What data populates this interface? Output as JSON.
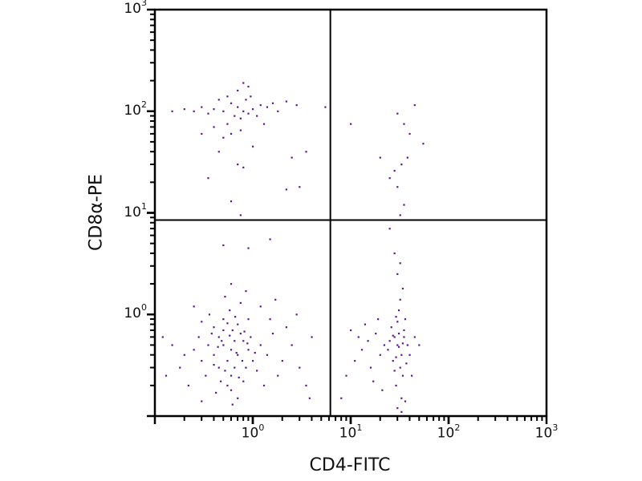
{
  "chart_data": {
    "type": "scatter",
    "xlabel": "CD4-FITC",
    "ylabel": "CD8α-PE",
    "xscale": "log",
    "yscale": "log",
    "xlim": [
      0.1,
      1000
    ],
    "ylim": [
      0.1,
      1000
    ],
    "grid": false,
    "point_color": "#5b1a8b",
    "quadrant_gates": {
      "x": 6.2,
      "y": 8.5
    },
    "x_ticks": [
      {
        "base": "10",
        "exp": "0",
        "value": 1
      },
      {
        "base": "10",
        "exp": "1",
        "value": 10
      },
      {
        "base": "10",
        "exp": "2",
        "value": 100
      },
      {
        "base": "10",
        "exp": "3",
        "value": 1000
      }
    ],
    "y_ticks": [
      {
        "base": "10",
        "exp": "0",
        "value": 1
      },
      {
        "base": "10",
        "exp": "1",
        "value": 10
      },
      {
        "base": "10",
        "exp": "2",
        "value": 100
      },
      {
        "base": "10",
        "exp": "3",
        "value": 1000
      }
    ],
    "points": [
      [
        0.6,
        0.45
      ],
      [
        0.5,
        0.5
      ],
      [
        0.7,
        0.4
      ],
      [
        0.55,
        0.35
      ],
      [
        0.8,
        0.55
      ],
      [
        0.45,
        0.6
      ],
      [
        0.65,
        0.3
      ],
      [
        0.9,
        0.45
      ],
      [
        0.4,
        0.4
      ],
      [
        0.75,
        0.65
      ],
      [
        0.6,
        0.25
      ],
      [
        0.5,
        0.7
      ],
      [
        1.0,
        0.35
      ],
      [
        0.35,
        0.5
      ],
      [
        0.85,
        0.3
      ],
      [
        0.7,
        0.8
      ],
      [
        0.55,
        0.2
      ],
      [
        1.2,
        0.5
      ],
      [
        0.3,
        0.35
      ],
      [
        0.65,
        0.55
      ],
      [
        0.45,
        0.3
      ],
      [
        0.95,
        0.6
      ],
      [
        0.6,
        0.18
      ],
      [
        0.4,
        0.75
      ],
      [
        1.4,
        0.4
      ],
      [
        0.25,
        0.45
      ],
      [
        0.8,
        0.22
      ],
      [
        0.5,
        0.9
      ],
      [
        1.1,
        0.28
      ],
      [
        0.7,
        0.15
      ],
      [
        0.33,
        0.25
      ],
      [
        1.6,
        0.65
      ],
      [
        0.58,
        1.1
      ],
      [
        0.28,
        0.6
      ],
      [
        2.0,
        0.35
      ],
      [
        0.9,
        0.9
      ],
      [
        0.42,
        0.17
      ],
      [
        1.3,
        0.2
      ],
      [
        0.2,
        0.4
      ],
      [
        2.5,
        0.5
      ],
      [
        0.62,
        0.13
      ],
      [
        0.75,
        1.3
      ],
      [
        0.18,
        0.3
      ],
      [
        1.8,
        0.25
      ],
      [
        3.0,
        0.3
      ],
      [
        0.36,
        1.0
      ],
      [
        1.5,
        0.9
      ],
      [
        0.22,
        0.2
      ],
      [
        2.2,
        0.75
      ],
      [
        0.52,
        1.5
      ],
      [
        0.15,
        0.5
      ],
      [
        3.5,
        0.2
      ],
      [
        0.85,
        1.7
      ],
      [
        0.3,
        0.14
      ],
      [
        2.8,
        1.0
      ],
      [
        1.2,
        1.2
      ],
      [
        0.48,
        0.55
      ],
      [
        0.68,
        0.42
      ],
      [
        0.58,
        0.62
      ],
      [
        0.78,
        0.35
      ],
      [
        0.44,
        0.48
      ],
      [
        0.62,
        0.7
      ],
      [
        0.52,
        0.28
      ],
      [
        0.88,
        0.52
      ],
      [
        0.38,
        0.65
      ],
      [
        0.72,
        0.24
      ],
      [
        0.55,
        0.82
      ],
      [
        1.05,
        0.42
      ],
      [
        0.47,
        0.22
      ],
      [
        0.66,
        0.95
      ],
      [
        0.82,
        0.68
      ],
      [
        0.4,
        0.32
      ],
      [
        0.3,
        0.85
      ],
      [
        1.7,
        1.4
      ],
      [
        4.0,
        0.6
      ],
      [
        0.25,
        1.2
      ],
      [
        0.6,
        2.0
      ],
      [
        0.9,
        4.5
      ],
      [
        1.5,
        5.5
      ],
      [
        0.5,
        4.8
      ],
      [
        3.8,
        0.15
      ],
      [
        0.12,
        0.6
      ],
      [
        0.13,
        0.25
      ],
      [
        30,
        0.5
      ],
      [
        28,
        0.6
      ],
      [
        33,
        0.4
      ],
      [
        35,
        0.7
      ],
      [
        25,
        0.55
      ],
      [
        32,
        0.3
      ],
      [
        30,
        0.85
      ],
      [
        38,
        0.5
      ],
      [
        27,
        0.35
      ],
      [
        34,
        0.25
      ],
      [
        31,
        1.1
      ],
      [
        29,
        0.2
      ],
      [
        36,
        0.9
      ],
      [
        26,
        0.75
      ],
      [
        33,
        0.15
      ],
      [
        40,
        0.4
      ],
      [
        24,
        0.45
      ],
      [
        32,
        1.4
      ],
      [
        30,
        0.12
      ],
      [
        35,
        0.6
      ],
      [
        28,
        0.28
      ],
      [
        37,
        0.33
      ],
      [
        31,
        0.65
      ],
      [
        29,
        0.95
      ],
      [
        34,
        1.8
      ],
      [
        22,
        0.5
      ],
      [
        45,
        0.6
      ],
      [
        20,
        0.4
      ],
      [
        18,
        0.65
      ],
      [
        16,
        0.3
      ],
      [
        15,
        0.55
      ],
      [
        14,
        0.8
      ],
      [
        19,
        0.9
      ],
      [
        13,
        0.45
      ],
      [
        17,
        0.22
      ],
      [
        12,
        0.6
      ],
      [
        11,
        0.35
      ],
      [
        10,
        0.7
      ],
      [
        21,
        0.18
      ],
      [
        50,
        0.5
      ],
      [
        42,
        0.25
      ],
      [
        33,
        0.11
      ],
      [
        36,
        0.14
      ],
      [
        30,
        2.5
      ],
      [
        32,
        3.2
      ],
      [
        28,
        4.0
      ],
      [
        25,
        7.0
      ],
      [
        8,
        0.15
      ],
      [
        9,
        0.25
      ],
      [
        31,
        0.48
      ],
      [
        27,
        0.62
      ],
      [
        34,
        0.52
      ],
      [
        29,
        0.38
      ],
      [
        0.8,
        100
      ],
      [
        0.7,
        110
      ],
      [
        0.9,
        95
      ],
      [
        0.6,
        120
      ],
      [
        1.0,
        105
      ],
      [
        0.75,
        85
      ],
      [
        0.85,
        130
      ],
      [
        0.65,
        90
      ],
      [
        1.2,
        115
      ],
      [
        0.5,
        100
      ],
      [
        0.95,
        140
      ],
      [
        0.55,
        75
      ],
      [
        1.4,
        110
      ],
      [
        0.45,
        130
      ],
      [
        0.7,
        160
      ],
      [
        1.1,
        90
      ],
      [
        0.4,
        105
      ],
      [
        1.6,
        120
      ],
      [
        0.6,
        60
      ],
      [
        0.8,
        190
      ],
      [
        0.35,
        95
      ],
      [
        1.8,
        100
      ],
      [
        0.5,
        55
      ],
      [
        0.9,
        175
      ],
      [
        0.3,
        110
      ],
      [
        2.2,
        125
      ],
      [
        0.4,
        70
      ],
      [
        1.3,
        75
      ],
      [
        0.25,
        100
      ],
      [
        2.8,
        115
      ],
      [
        0.55,
        140
      ],
      [
        0.75,
        65
      ],
      [
        0.2,
        105
      ],
      [
        1.0,
        45
      ],
      [
        0.3,
        60
      ],
      [
        0.45,
        40
      ],
      [
        3.5,
        40
      ],
      [
        2.5,
        35
      ],
      [
        0.7,
        30
      ],
      [
        0.8,
        28
      ],
      [
        0.35,
        22
      ],
      [
        2.2,
        17
      ],
      [
        0.6,
        13
      ],
      [
        0.75,
        9.5
      ],
      [
        3.0,
        18
      ],
      [
        0.15,
        100
      ],
      [
        5.5,
        110
      ],
      [
        10,
        75
      ],
      [
        30,
        95
      ],
      [
        35,
        75
      ],
      [
        40,
        60
      ],
      [
        45,
        115
      ],
      [
        55,
        48
      ],
      [
        25,
        22
      ],
      [
        28,
        26
      ],
      [
        33,
        30
      ],
      [
        38,
        35
      ],
      [
        30,
        18
      ],
      [
        35,
        12
      ],
      [
        32,
        9.5
      ],
      [
        20,
        35
      ]
    ]
  }
}
